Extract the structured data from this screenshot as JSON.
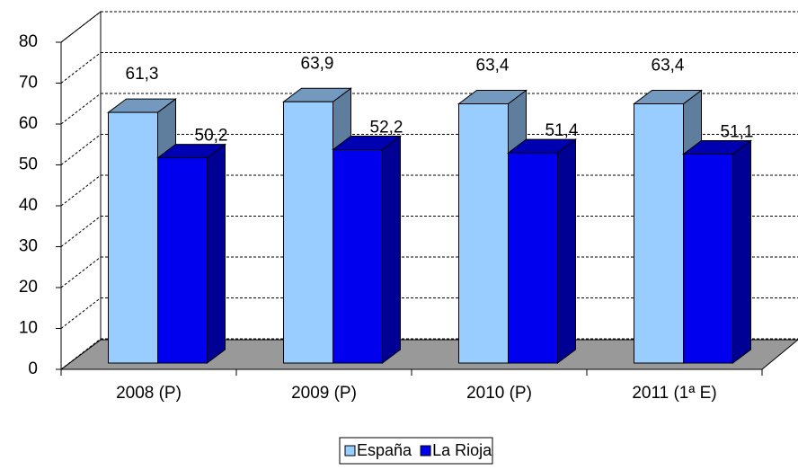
{
  "chart_data": {
    "type": "bar3d",
    "categories": [
      "2008 (P)",
      "2009 (P)",
      "2010 (P)",
      "2011 (1ª E)"
    ],
    "series": [
      {
        "name": "España",
        "color": "#99ccff",
        "values": [
          61.3,
          63.9,
          63.4,
          63.4
        ],
        "value_labels": [
          "61,3",
          "63,9",
          "63,4",
          "63,4"
        ]
      },
      {
        "name": "La Rioja",
        "color": "#0000ee",
        "values": [
          50.2,
          52.2,
          51.4,
          51.1
        ],
        "value_labels": [
          "50,2",
          "52,2",
          "51,4",
          "51,1"
        ]
      }
    ],
    "ylim": [
      0,
      80
    ],
    "yticks": [
      0,
      10,
      20,
      30,
      40,
      50,
      60,
      70,
      80
    ],
    "grid": true,
    "legend": "bottom"
  }
}
